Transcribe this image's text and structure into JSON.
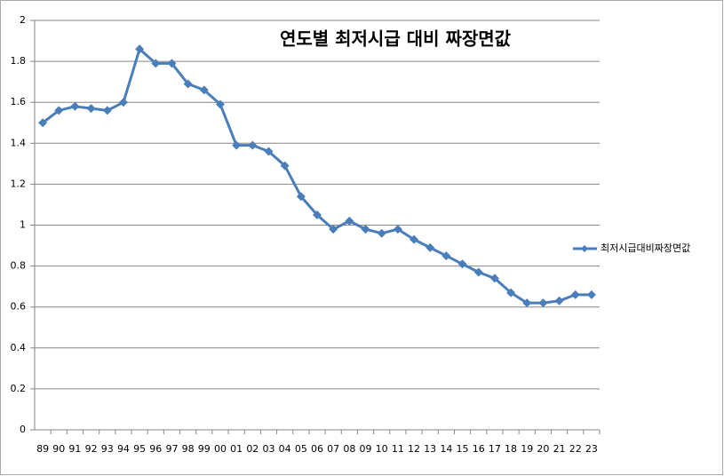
{
  "chart_data": {
    "type": "line",
    "title": "연도별 최저시급 대비 짜장면값",
    "categories": [
      "89",
      "90",
      "91",
      "92",
      "93",
      "94",
      "95",
      "96",
      "97",
      "98",
      "99",
      "00",
      "01",
      "02",
      "03",
      "04",
      "05",
      "06",
      "07",
      "08",
      "09",
      "10",
      "11",
      "12",
      "13",
      "14",
      "15",
      "16",
      "17",
      "18",
      "19",
      "20",
      "21",
      "22",
      "23"
    ],
    "series": [
      {
        "name": "최저시급대비짜장면값",
        "color": "#4a7ebb",
        "values": [
          1.5,
          1.56,
          1.58,
          1.57,
          1.56,
          1.6,
          1.86,
          1.79,
          1.79,
          1.69,
          1.66,
          1.59,
          1.39,
          1.39,
          1.36,
          1.29,
          1.14,
          1.05,
          0.98,
          1.02,
          0.98,
          0.96,
          0.98,
          0.93,
          0.89,
          0.85,
          0.81,
          0.77,
          0.74,
          0.67,
          0.62,
          0.62,
          0.63,
          0.66,
          0.66
        ]
      }
    ],
    "ylim": [
      0,
      2
    ],
    "yticks": [
      0,
      0.2,
      0.4,
      0.6,
      0.8,
      1,
      1.2,
      1.4,
      1.6,
      1.8,
      2
    ],
    "grid": true,
    "legend": "right"
  }
}
